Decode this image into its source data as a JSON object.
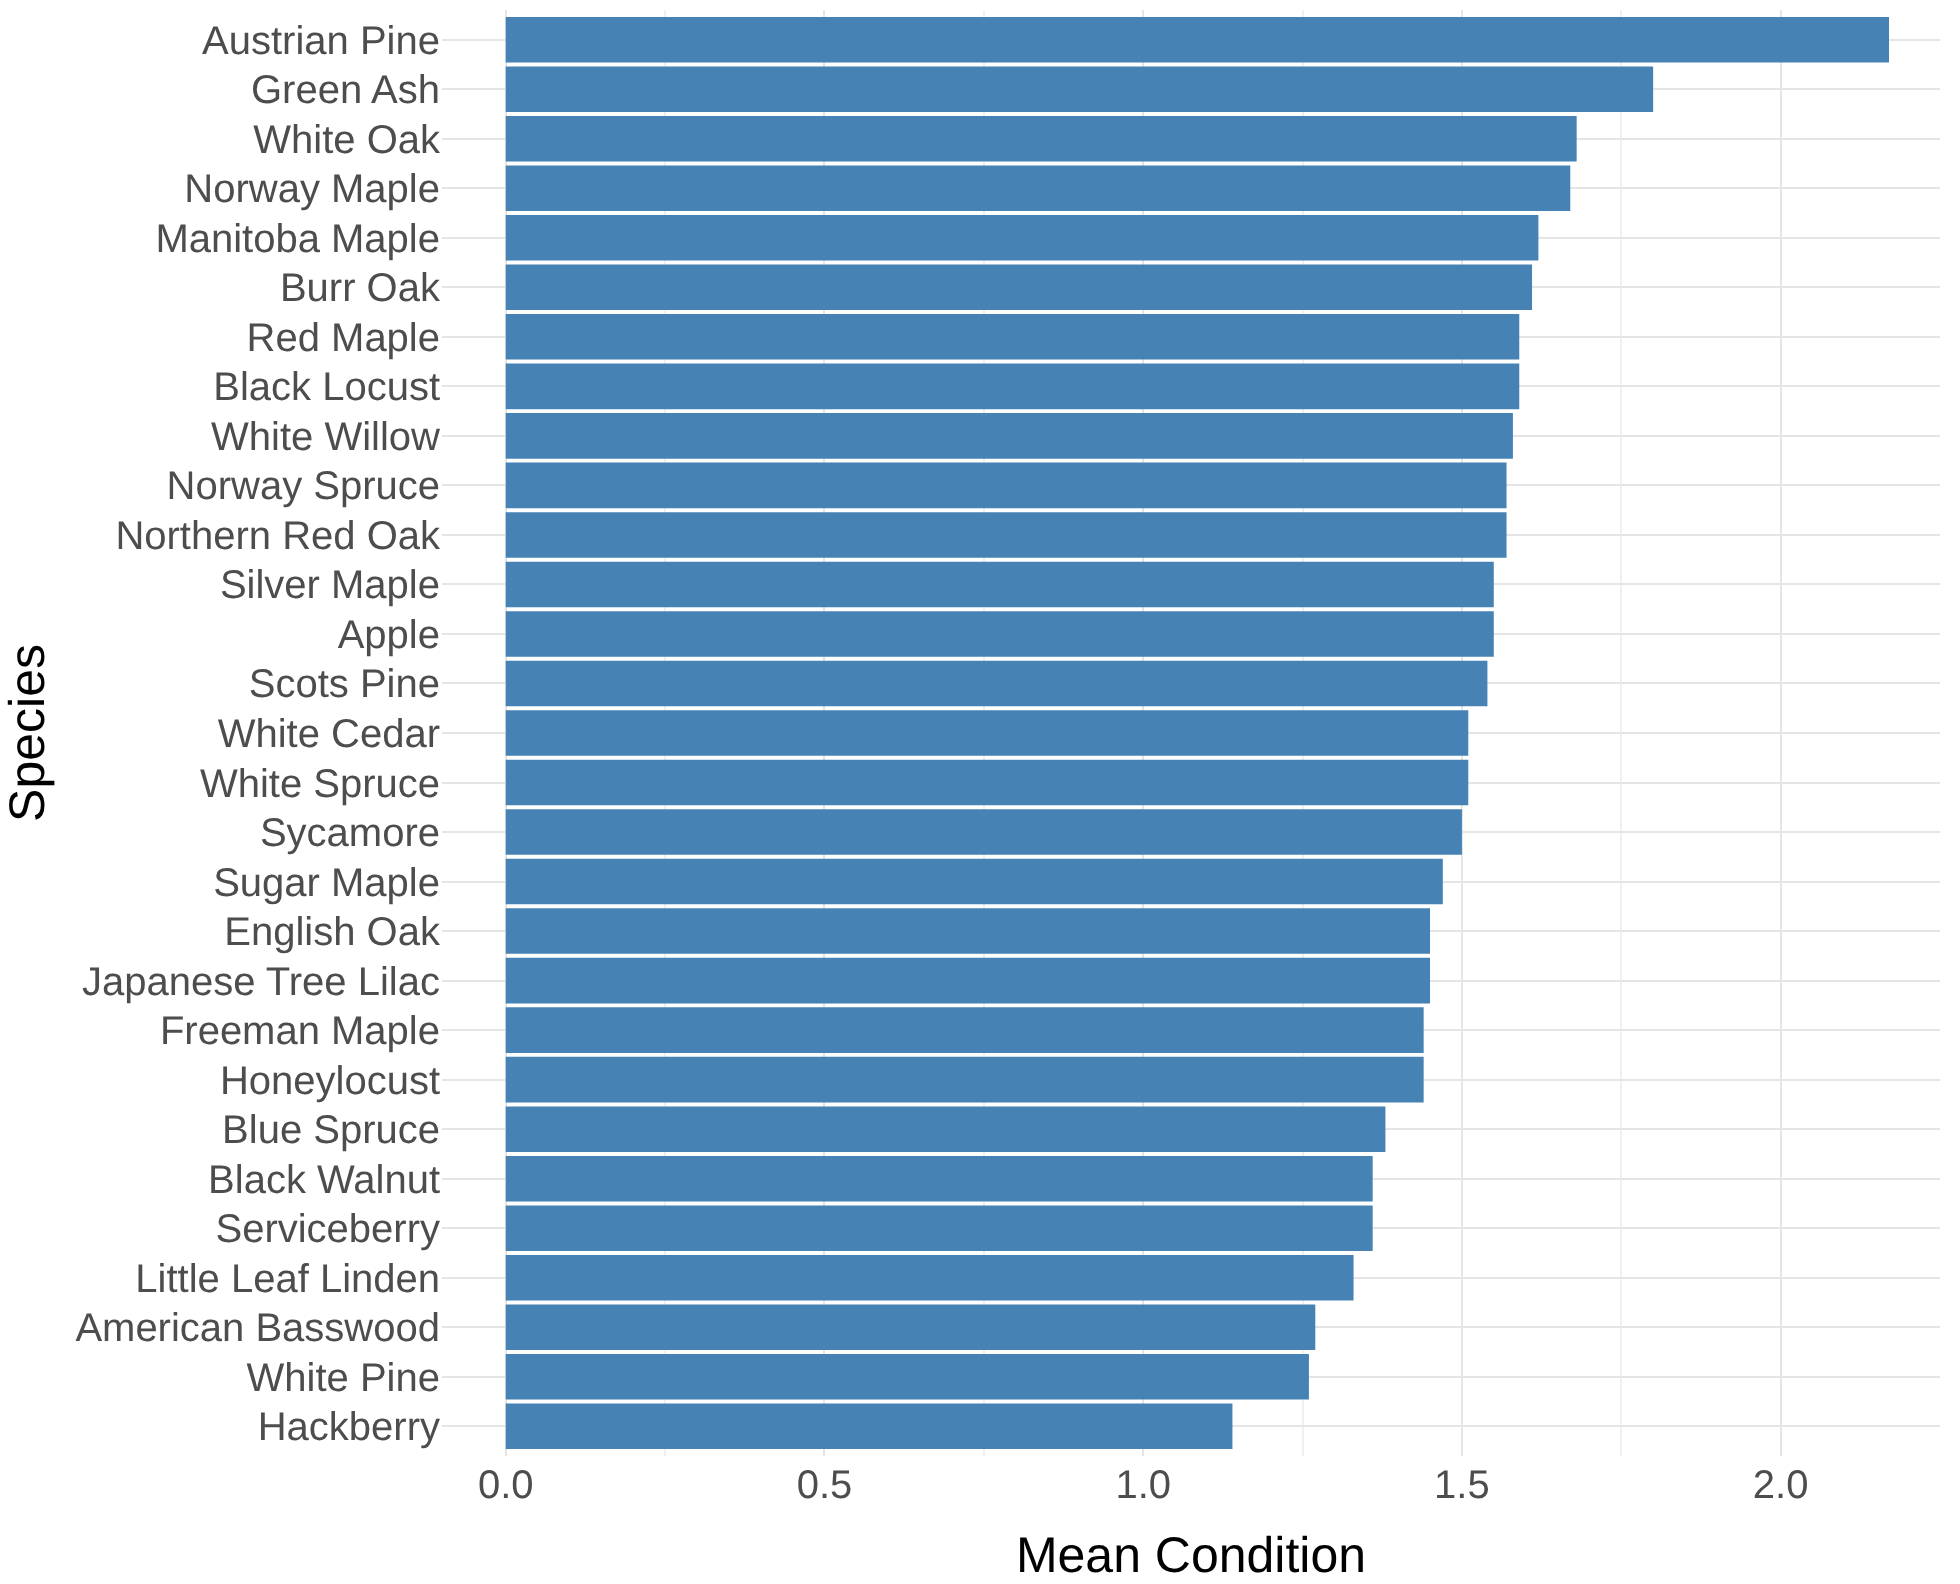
{
  "chart_data": {
    "type": "bar",
    "orientation": "horizontal",
    "xlabel": "Mean Condition",
    "ylabel": "Species",
    "categories": [
      "Austrian Pine",
      "Green Ash",
      "White Oak",
      "Norway Maple",
      "Manitoba Maple",
      "Burr Oak",
      "Red Maple",
      "Black Locust",
      "White Willow",
      "Norway Spruce",
      "Northern Red Oak",
      "Silver Maple",
      "Apple",
      "Scots Pine",
      "White Cedar",
      "White Spruce",
      "Sycamore",
      "Sugar Maple",
      "English Oak",
      "Japanese Tree Lilac",
      "Freeman Maple",
      "Honeylocust",
      "Blue Spruce",
      "Black Walnut",
      "Serviceberry",
      "Little Leaf Linden",
      "American Basswood",
      "White Pine",
      "Hackberry"
    ],
    "values": [
      2.17,
      1.8,
      1.68,
      1.67,
      1.62,
      1.61,
      1.59,
      1.59,
      1.58,
      1.57,
      1.57,
      1.55,
      1.55,
      1.54,
      1.51,
      1.51,
      1.5,
      1.47,
      1.45,
      1.45,
      1.44,
      1.44,
      1.38,
      1.36,
      1.36,
      1.33,
      1.27,
      1.26,
      1.14
    ],
    "color": "#4682b4",
    "xlim": [
      -0.1,
      2.25
    ],
    "xticks": [
      {
        "value": 0,
        "label": "0.0"
      },
      {
        "value": 0.5,
        "label": "0.5"
      },
      {
        "value": 1,
        "label": "1.0"
      },
      {
        "value": 1.5,
        "label": "1.5"
      },
      {
        "value": 2,
        "label": "2.0"
      }
    ],
    "grid": true
  }
}
